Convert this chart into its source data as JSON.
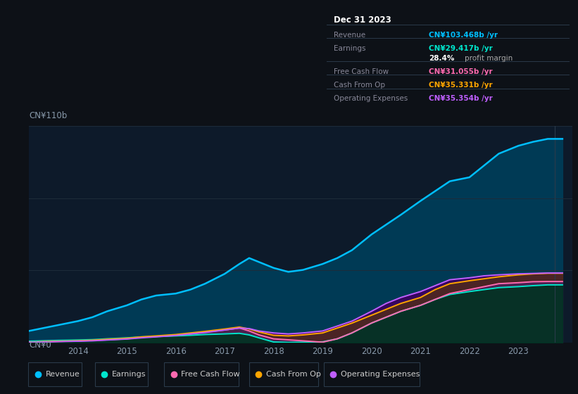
{
  "bg_color": "#0d1117",
  "plot_bg_color": "#0d1a2a",
  "grid_color": "#1e2c3a",
  "label_color": "#8899aa",
  "ylabel_text": "CN¥110b",
  "ylabel0_text": "CN¥0",
  "years": [
    2013.0,
    2013.3,
    2013.6,
    2014.0,
    2014.3,
    2014.6,
    2015.0,
    2015.3,
    2015.6,
    2016.0,
    2016.3,
    2016.6,
    2017.0,
    2017.3,
    2017.5,
    2017.7,
    2018.0,
    2018.3,
    2018.6,
    2019.0,
    2019.3,
    2019.6,
    2020.0,
    2020.3,
    2020.6,
    2021.0,
    2021.3,
    2021.6,
    2022.0,
    2022.3,
    2022.6,
    2023.0,
    2023.3,
    2023.6,
    2023.9
  ],
  "revenue": [
    6,
    7.5,
    9,
    11,
    13,
    16,
    19,
    22,
    24,
    25,
    27,
    30,
    35,
    40,
    43,
    41,
    38,
    36,
    37,
    40,
    43,
    47,
    55,
    60,
    65,
    72,
    77,
    82,
    84,
    90,
    96,
    100,
    102,
    103.5,
    103.5
  ],
  "earnings": [
    0.8,
    1.0,
    1.2,
    1.4,
    1.6,
    2.0,
    2.5,
    3.0,
    3.2,
    3.5,
    3.8,
    4.2,
    4.5,
    4.8,
    4.0,
    2.5,
    0.4,
    0.2,
    0.3,
    0.5,
    2.0,
    5.0,
    10.0,
    13.0,
    16.0,
    19.0,
    22.0,
    24.5,
    26.0,
    27.0,
    28.0,
    28.5,
    29.0,
    29.4,
    29.4
  ],
  "free_cash_flow": [
    0.3,
    0.5,
    0.7,
    0.9,
    1.2,
    1.5,
    2.0,
    2.8,
    3.2,
    3.8,
    4.5,
    5.5,
    6.5,
    7.5,
    6.0,
    4.0,
    2.0,
    1.5,
    1.0,
    0.3,
    2.0,
    5.0,
    10.0,
    13.0,
    16.0,
    19.0,
    22.0,
    25.0,
    27.0,
    28.5,
    30.0,
    30.5,
    31.0,
    31.1,
    31.1
  ],
  "cash_from_op": [
    0.4,
    0.6,
    0.8,
    1.0,
    1.3,
    1.8,
    2.3,
    3.0,
    3.5,
    4.2,
    5.0,
    5.8,
    7.0,
    8.0,
    7.0,
    5.5,
    3.8,
    3.5,
    4.0,
    5.0,
    7.5,
    10.0,
    14.0,
    17.0,
    20.0,
    23.0,
    27.0,
    30.0,
    31.5,
    32.5,
    33.5,
    34.5,
    35.0,
    35.3,
    35.3
  ],
  "op_expenses": [
    0.3,
    0.4,
    0.6,
    0.8,
    1.0,
    1.4,
    1.9,
    2.5,
    3.0,
    3.7,
    4.5,
    5.2,
    6.5,
    7.5,
    7.2,
    6.0,
    5.0,
    4.5,
    5.0,
    6.0,
    8.5,
    11.0,
    16.0,
    20.0,
    23.0,
    26.0,
    29.0,
    32.0,
    33.0,
    34.0,
    34.5,
    35.0,
    35.2,
    35.4,
    35.4
  ],
  "revenue_color": "#00bfff",
  "earnings_color": "#00e5cc",
  "fcf_color": "#ff6ab0",
  "cashop_color": "#ffa500",
  "opex_color": "#bf5fff",
  "x_tick_years": [
    2014,
    2015,
    2016,
    2017,
    2018,
    2019,
    2020,
    2021,
    2022,
    2023
  ],
  "ylim": [
    0,
    110
  ],
  "xlim_start": 2013.0,
  "xlim_end": 2024.1,
  "legend_items": [
    "Revenue",
    "Earnings",
    "Free Cash Flow",
    "Cash From Op",
    "Operating Expenses"
  ],
  "legend_colors": [
    "#00bfff",
    "#00e5cc",
    "#ff6ab0",
    "#ffa500",
    "#bf5fff"
  ],
  "tooltip_title": "Dec 31 2023",
  "tooltip_rows": [
    {
      "label": "Revenue",
      "value": "CN¥103.468b /yr",
      "color": "#00bfff"
    },
    {
      "label": "Earnings",
      "value": "CN¥29.417b /yr",
      "color": "#00e5cc"
    },
    {
      "label": "",
      "value": "28.4% profit margin",
      "color": "#ffffff"
    },
    {
      "label": "Free Cash Flow",
      "value": "CN¥31.055b /yr",
      "color": "#ff6ab0"
    },
    {
      "label": "Cash From Op",
      "value": "CN¥35.331b /yr",
      "color": "#ffa500"
    },
    {
      "label": "Operating Expenses",
      "value": "CN¥35.354b /yr",
      "color": "#bf5fff"
    }
  ]
}
